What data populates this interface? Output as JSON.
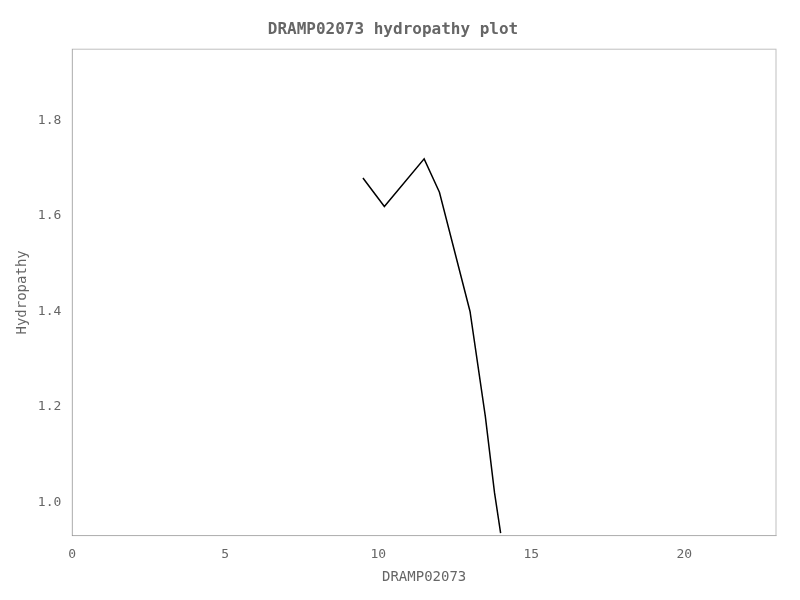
{
  "chart_data": {
    "type": "line",
    "title": "DRAMP02073 hydropathy plot",
    "xlabel": "DRAMP02073",
    "ylabel": "Hydropathy",
    "x": [
      9.5,
      10.2,
      11.5,
      12.0,
      13.0,
      13.5,
      13.8,
      14.0
    ],
    "values": [
      1.68,
      1.62,
      1.72,
      1.65,
      1.4,
      1.18,
      1.02,
      0.935
    ],
    "color": "#000000",
    "xlim": [
      0,
      23.0
    ],
    "ylim": [
      0.93,
      1.95
    ],
    "xticks": [
      0,
      5,
      10,
      15,
      20
    ],
    "yticks": [
      {
        "value": 1.0,
        "label": "1.0"
      },
      {
        "value": 1.2,
        "label": "1.2"
      },
      {
        "value": 1.4,
        "label": "1.4"
      },
      {
        "value": 1.6,
        "label": "1.6"
      },
      {
        "value": 1.8,
        "label": "1.8"
      }
    ],
    "grid": false
  }
}
